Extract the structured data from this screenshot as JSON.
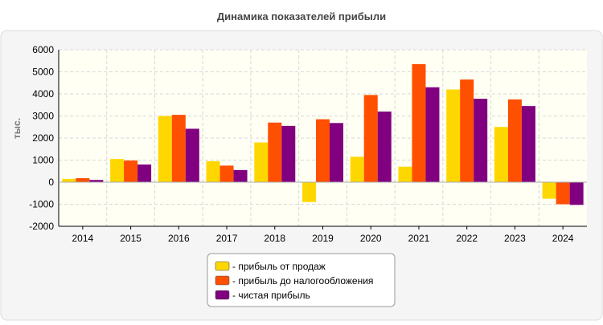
{
  "chart_data": {
    "type": "bar",
    "title": "Динамика показателей прибыли",
    "xlabel": "",
    "ylabel": "тыс.",
    "ylim": [
      -2000,
      6000
    ],
    "yticks": [
      -2000,
      -1000,
      0,
      1000,
      2000,
      3000,
      4000,
      5000,
      6000
    ],
    "grid": true,
    "legend_position": "bottom",
    "categories": [
      "2014",
      "2015",
      "2016",
      "2017",
      "2018",
      "2019",
      "2020",
      "2021",
      "2022",
      "2023",
      "2024"
    ],
    "series": [
      {
        "name": "- прибыль от продаж",
        "color": "#FFD700",
        "values": [
          150,
          1050,
          3000,
          950,
          1800,
          -900,
          1150,
          700,
          4200,
          2500,
          -750
        ]
      },
      {
        "name": "- прибыль до налогообложения",
        "color": "#FF4F00",
        "values": [
          180,
          980,
          3050,
          750,
          2700,
          2850,
          3950,
          5350,
          4650,
          3750,
          -1000
        ]
      },
      {
        "name": "- чистая прибыль",
        "color": "#800080",
        "values": [
          100,
          800,
          2420,
          550,
          2550,
          2680,
          3200,
          4300,
          3780,
          3450,
          -1030
        ]
      }
    ]
  }
}
